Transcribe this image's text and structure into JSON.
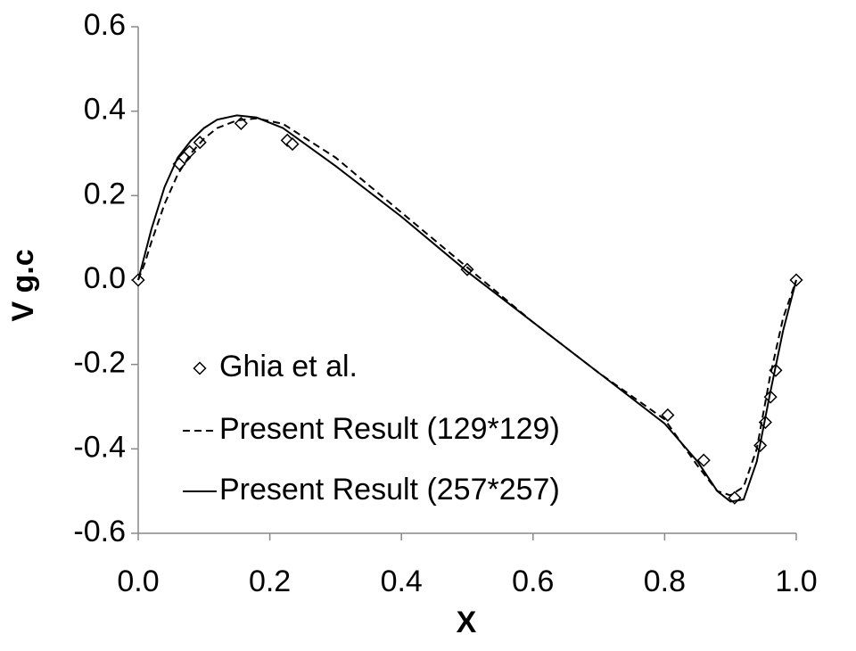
{
  "chart_data": {
    "type": "line",
    "x_label": "X",
    "y_label": "V g.c",
    "xlim": [
      0,
      1
    ],
    "ylim": [
      -0.6,
      0.6
    ],
    "xticks": [
      {
        "value": 0,
        "label": "0.0"
      },
      0.2,
      0.4,
      0.6,
      0.8,
      {
        "value": 1,
        "label": "1.0"
      }
    ],
    "yticks": [
      -0.6,
      -0.4,
      -0.2,
      {
        "value": 0,
        "label": "0.0"
      },
      0.2,
      0.4,
      0.6
    ],
    "grid": false,
    "series": [
      {
        "name": "Ghia et al.",
        "type": "scatter",
        "color": "#000000",
        "x": [
          0,
          0.0625,
          0.0703,
          0.0781,
          0.0938,
          0.1563,
          0.2266,
          0.2344,
          0.5,
          0.8047,
          0.8594,
          0.9063,
          0.9453,
          0.9531,
          0.9609,
          0.9688,
          1
        ],
        "values": [
          0,
          0.275,
          0.29,
          0.304,
          0.326,
          0.371,
          0.331,
          0.322,
          0.025,
          -0.32,
          -0.427,
          -0.516,
          -0.392,
          -0.337,
          -0.277,
          -0.214,
          0
        ]
      },
      {
        "name": "Present Result (129*129)",
        "type": "line",
        "color": "#000000",
        "dash": true,
        "x": [
          0,
          0.01,
          0.02,
          0.04,
          0.06,
          0.08,
          0.1,
          0.12,
          0.15,
          0.18,
          0.22,
          0.3,
          0.4,
          0.5,
          0.6,
          0.7,
          0.8,
          0.85,
          0.88,
          0.9,
          0.92,
          0.94,
          0.96,
          0.98,
          1
        ],
        "values": [
          0,
          0.04,
          0.09,
          0.18,
          0.25,
          0.3,
          0.335,
          0.36,
          0.378,
          0.383,
          0.37,
          0.29,
          0.16,
          0.03,
          -0.1,
          -0.22,
          -0.33,
          -0.44,
          -0.5,
          -0.51,
          -0.49,
          -0.4,
          -0.23,
          -0.09,
          0
        ]
      },
      {
        "name": "Present Result (257*257)",
        "type": "line",
        "color": "#000000",
        "dash": false,
        "x": [
          0,
          0.01,
          0.02,
          0.04,
          0.06,
          0.08,
          0.1,
          0.12,
          0.15,
          0.18,
          0.22,
          0.3,
          0.4,
          0.5,
          0.6,
          0.7,
          0.8,
          0.85,
          0.88,
          0.9,
          0.92,
          0.94,
          0.96,
          0.98,
          1
        ],
        "values": [
          0,
          0.06,
          0.12,
          0.22,
          0.29,
          0.33,
          0.36,
          0.38,
          0.39,
          0.385,
          0.36,
          0.27,
          0.15,
          0.02,
          -0.1,
          -0.22,
          -0.34,
          -0.43,
          -0.5,
          -0.525,
          -0.52,
          -0.43,
          -0.27,
          -0.12,
          0
        ]
      }
    ]
  }
}
